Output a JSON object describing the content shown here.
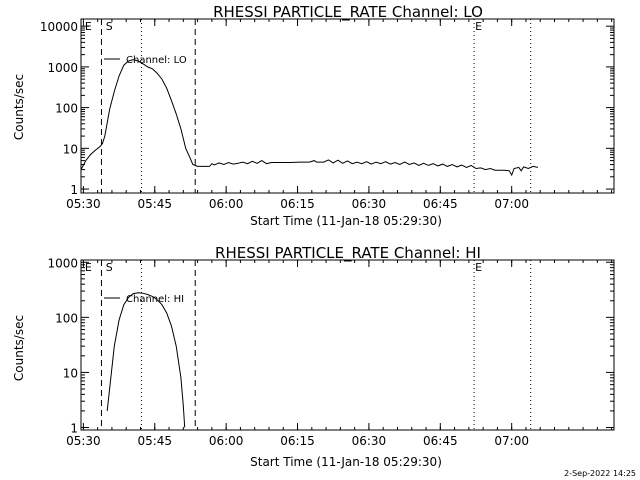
{
  "footer": {
    "timestamp": "2-Sep-2022 14:25"
  },
  "chart_data": [
    {
      "type": "line",
      "title": "RHESSI PARTICLE_RATE Channel: LO",
      "xlabel": "Start Time (11-Jan-18 05:29:30)",
      "ylabel": "Counts/sec",
      "y_scale": "log",
      "ylim": [
        0.8,
        15000
      ],
      "xlim_minutes": [
        0,
        112
      ],
      "x_ticks": [
        {
          "t": 0.5,
          "label": "05:30"
        },
        {
          "t": 15.5,
          "label": "05:45"
        },
        {
          "t": 30.5,
          "label": "06:00"
        },
        {
          "t": 45.5,
          "label": "06:15"
        },
        {
          "t": 60.5,
          "label": "06:30"
        },
        {
          "t": 75.5,
          "label": "06:45"
        },
        {
          "t": 90.5,
          "label": "07:00"
        }
      ],
      "y_ticks": [
        {
          "v": 1,
          "label": "1"
        },
        {
          "v": 10,
          "label": "10"
        },
        {
          "v": 100,
          "label": "100"
        },
        {
          "v": 1000,
          "label": "1000"
        },
        {
          "v": 10000,
          "label": "10000"
        }
      ],
      "legend": "Channel: LO",
      "markers": [
        {
          "t": 0.6,
          "label": "E"
        },
        {
          "t": 5.0,
          "label": "S"
        },
        {
          "t": 82.6,
          "label": "E"
        }
      ],
      "dashed_lines": [
        4.3,
        24.0
      ],
      "dotted_lines": [
        12.7,
        82.6,
        94.5
      ],
      "series": [
        {
          "values": [
            [
              0.0,
              3.0
            ],
            [
              1.0,
              5.0
            ],
            [
              2.0,
              7.0
            ],
            [
              3.0,
              9.0
            ],
            [
              4.0,
              11.0
            ],
            [
              4.5,
              13.0
            ],
            [
              5.0,
              20.0
            ],
            [
              6.0,
              90.0
            ],
            [
              7.0,
              250.0
            ],
            [
              8.0,
              600.0
            ],
            [
              9.0,
              1100.0
            ],
            [
              10.0,
              1400.0
            ],
            [
              11.0,
              1500.0
            ],
            [
              12.0,
              1400.0
            ],
            [
              13.0,
              1200.0
            ],
            [
              14.0,
              1000.0
            ],
            [
              15.0,
              900.0
            ],
            [
              16.0,
              700.0
            ],
            [
              17.0,
              500.0
            ],
            [
              18.0,
              300.0
            ],
            [
              19.0,
              150.0
            ],
            [
              20.0,
              70.0
            ],
            [
              21.0,
              30.0
            ],
            [
              22.0,
              10.0
            ],
            [
              23.0,
              5.5
            ],
            [
              23.5,
              4.0
            ],
            [
              24.5,
              3.6
            ],
            [
              27.0,
              3.6
            ],
            [
              27.5,
              4.2
            ],
            [
              28.0,
              3.9
            ],
            [
              29.0,
              4.4
            ],
            [
              30.0,
              4.0
            ],
            [
              31.0,
              4.5
            ],
            [
              32.0,
              4.1
            ],
            [
              33.0,
              4.3
            ],
            [
              34.0,
              4.6
            ],
            [
              35.0,
              4.2
            ],
            [
              36.0,
              4.8
            ],
            [
              37.0,
              4.3
            ],
            [
              38.0,
              5.0
            ],
            [
              39.0,
              4.2
            ],
            [
              40.0,
              4.5
            ],
            [
              42.0,
              4.5
            ],
            [
              44.0,
              4.5
            ],
            [
              46.0,
              4.6
            ],
            [
              48.0,
              4.6
            ],
            [
              49.0,
              5.0
            ],
            [
              49.5,
              4.6
            ],
            [
              51.0,
              4.6
            ],
            [
              52.0,
              5.2
            ],
            [
              53.0,
              4.4
            ],
            [
              54.0,
              5.1
            ],
            [
              55.0,
              4.3
            ],
            [
              56.0,
              4.9
            ],
            [
              57.0,
              4.2
            ],
            [
              58.0,
              4.6
            ],
            [
              59.0,
              4.2
            ],
            [
              60.0,
              4.7
            ],
            [
              61.0,
              4.1
            ],
            [
              62.0,
              4.6
            ],
            [
              63.0,
              4.2
            ],
            [
              64.0,
              4.7
            ],
            [
              65.0,
              4.1
            ],
            [
              66.0,
              4.5
            ],
            [
              67.0,
              4.0
            ],
            [
              68.0,
              4.6
            ],
            [
              69.0,
              4.0
            ],
            [
              70.0,
              4.4
            ],
            [
              71.0,
              3.8
            ],
            [
              72.0,
              4.3
            ],
            [
              73.0,
              3.8
            ],
            [
              74.0,
              4.2
            ],
            [
              75.0,
              3.7
            ],
            [
              76.0,
              4.1
            ],
            [
              77.0,
              3.6
            ],
            [
              78.0,
              4.0
            ],
            [
              79.0,
              3.5
            ],
            [
              80.0,
              3.9
            ],
            [
              81.0,
              3.4
            ],
            [
              82.0,
              3.8
            ],
            [
              83.0,
              3.2
            ],
            [
              84.0,
              3.3
            ],
            [
              85.0,
              3.0
            ],
            [
              86.0,
              3.2
            ],
            [
              87.0,
              2.9
            ],
            [
              89.0,
              2.9
            ],
            [
              90.0,
              2.8
            ],
            [
              90.5,
              2.2
            ],
            [
              91.0,
              3.2
            ],
            [
              92.0,
              3.4
            ],
            [
              92.5,
              2.8
            ],
            [
              93.0,
              3.5
            ],
            [
              94.0,
              3.2
            ],
            [
              95.0,
              3.6
            ],
            [
              96.0,
              3.4
            ]
          ]
        }
      ]
    },
    {
      "type": "line",
      "title": "RHESSI PARTICLE_RATE Channel: HI",
      "xlabel": "Start Time (11-Jan-18 05:29:30)",
      "ylabel": "Counts/sec",
      "y_scale": "log",
      "ylim": [
        0.9,
        1100
      ],
      "xlim_minutes": [
        0,
        112
      ],
      "x_ticks": [
        {
          "t": 0.5,
          "label": "05:30"
        },
        {
          "t": 15.5,
          "label": "05:45"
        },
        {
          "t": 30.5,
          "label": "06:00"
        },
        {
          "t": 45.5,
          "label": "06:15"
        },
        {
          "t": 60.5,
          "label": "06:30"
        },
        {
          "t": 75.5,
          "label": "06:45"
        },
        {
          "t": 90.5,
          "label": "07:00"
        }
      ],
      "y_ticks": [
        {
          "v": 1,
          "label": "1"
        },
        {
          "v": 10,
          "label": "10"
        },
        {
          "v": 100,
          "label": "100"
        },
        {
          "v": 1000,
          "label": "1000"
        }
      ],
      "legend": "Channel: HI",
      "markers": [
        {
          "t": 0.6,
          "label": "E"
        },
        {
          "t": 5.0,
          "label": "S"
        },
        {
          "t": 82.6,
          "label": "E"
        }
      ],
      "dashed_lines": [
        4.3,
        24.0
      ],
      "dotted_lines": [
        12.7,
        82.6,
        94.5
      ],
      "series": [
        {
          "values": [
            [
              5.5,
              2.0
            ],
            [
              6.0,
              5.0
            ],
            [
              7.0,
              30.0
            ],
            [
              8.0,
              90.0
            ],
            [
              9.0,
              170.0
            ],
            [
              10.0,
              230.0
            ],
            [
              11.0,
              270.0
            ],
            [
              12.0,
              280.0
            ],
            [
              13.0,
              275.0
            ],
            [
              14.0,
              260.0
            ],
            [
              15.0,
              240.0
            ],
            [
              16.0,
              210.0
            ],
            [
              17.0,
              170.0
            ],
            [
              18.0,
              120.0
            ],
            [
              19.0,
              70.0
            ],
            [
              20.0,
              30.0
            ],
            [
              21.0,
              8.0
            ],
            [
              21.5,
              2.5
            ],
            [
              21.8,
              1.0
            ]
          ]
        }
      ]
    }
  ]
}
